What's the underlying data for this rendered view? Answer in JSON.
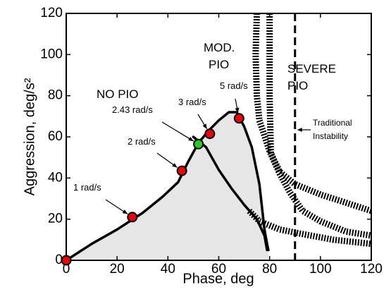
{
  "chart_data": {
    "type": "line",
    "xlabel": "Phase, deg",
    "ylabel": "Aggression, deg/s²",
    "xlim": [
      0,
      120
    ],
    "ylim": [
      0,
      120
    ],
    "x_ticks": [
      0,
      20,
      40,
      60,
      80,
      100,
      120
    ],
    "y_ticks": [
      0,
      20,
      40,
      60,
      80,
      100,
      120
    ],
    "grid": false,
    "regions": [
      {
        "label": "NO PIO"
      },
      {
        "label_line1": "MOD.",
        "label_line2": "PIO"
      },
      {
        "label_line1": "SEVERE",
        "label_line2": "PIO"
      }
    ],
    "boundaries": [
      {
        "style": "hatched",
        "x": [
          75,
          74.5,
          75,
          76,
          80,
          84,
          88,
          93,
          100,
          110,
          120
        ],
        "y": [
          120,
          100,
          80,
          68,
          53,
          42,
          33,
          24,
          19,
          14,
          12
        ]
      },
      {
        "style": "hatched",
        "x": [
          80,
          80,
          80.5,
          84,
          90,
          100,
          110,
          120
        ],
        "y": [
          120,
          80,
          52,
          43,
          37,
          32,
          28,
          24
        ]
      },
      {
        "style": "hatched",
        "x": [
          72,
          76,
          84,
          92,
          105,
          120
        ],
        "y": [
          24,
          19,
          15,
          13,
          10,
          8
        ]
      }
    ],
    "traditional_instability": {
      "x": 90,
      "label_line1": "Traditional",
      "label_line2": "Instability"
    },
    "series": [
      {
        "style": "filled-curve",
        "x": [
          0,
          10,
          20,
          30,
          38,
          44,
          48,
          52,
          56,
          60,
          64,
          67,
          70,
          73,
          76,
          78,
          79,
          79.5
        ],
        "y": [
          0,
          8,
          15,
          23,
          31,
          38,
          48,
          57,
          63,
          68,
          72,
          72,
          65,
          55,
          37,
          15,
          8,
          5
        ]
      },
      {
        "style": "line",
        "x": [
          50,
          55,
          60,
          65,
          70,
          75,
          78,
          79
        ],
        "y": [
          60,
          55,
          44,
          35,
          27,
          20,
          12,
          5
        ]
      }
    ],
    "points": [
      {
        "x": 0,
        "y": 0,
        "color": "#e8000b"
      },
      {
        "x": 26,
        "y": 21,
        "label": "1 rad/s",
        "color": "#e8000b"
      },
      {
        "x": 45.5,
        "y": 43.5,
        "label": "2 rad/s",
        "color": "#e8000b"
      },
      {
        "x": 52,
        "y": 56.5,
        "label": "2.43 rad/s",
        "color": "#22cc22"
      },
      {
        "x": 56.5,
        "y": 61.5,
        "label": "3 rad/s",
        "color": "#e8000b"
      },
      {
        "x": 68,
        "y": 69,
        "label": "5 rad/s",
        "color": "#e8000b"
      }
    ]
  }
}
